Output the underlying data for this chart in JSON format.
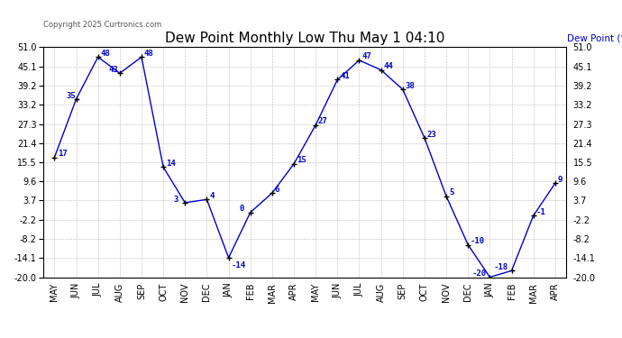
{
  "title": "Dew Point Monthly Low Thu May 1 04:10",
  "ylabel": "Dew Point (°F)",
  "copyright": "Copyright 2025 Curtronics.com",
  "line_color": "#0000cc",
  "marker_color": "#000000",
  "bg_color": "#ffffff",
  "grid_color": "#bbbbbb",
  "border_color": "#000000",
  "months": [
    "MAY",
    "JUN",
    "JUL",
    "AUG",
    "SEP",
    "OCT",
    "NOV",
    "DEC",
    "JAN",
    "FEB",
    "MAR",
    "APR",
    "MAY",
    "JUN",
    "JUL",
    "AUG",
    "SEP",
    "OCT",
    "NOV",
    "DEC",
    "JAN",
    "FEB",
    "MAR",
    "APR"
  ],
  "values": [
    17,
    35,
    48,
    43,
    48,
    14,
    3,
    4,
    -14,
    0,
    6,
    15,
    27,
    41,
    47,
    44,
    38,
    23,
    5,
    -10,
    -20,
    -18,
    -1,
    9
  ],
  "ylim_min": -20.0,
  "ylim_max": 51.0,
  "yticks": [
    51.0,
    45.1,
    39.2,
    33.2,
    27.3,
    21.4,
    15.5,
    9.6,
    3.7,
    -2.2,
    -8.2,
    -14.1,
    -20.0
  ],
  "title_fontsize": 11,
  "annotation_fontsize": 6.5,
  "tick_fontsize": 7,
  "copyright_fontsize": 6,
  "ylabel_fontsize": 7.5
}
